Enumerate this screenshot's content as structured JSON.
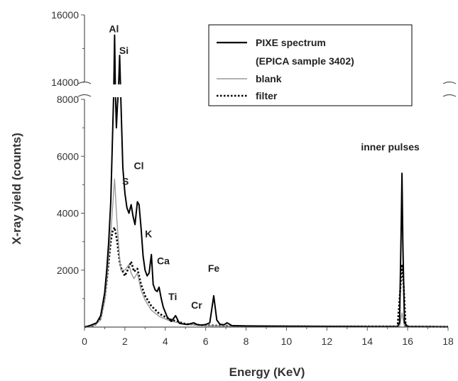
{
  "chart_data": {
    "type": "line",
    "xlabel": "Energy (KeV)",
    "ylabel": "X-ray yield (counts)",
    "xlim": [
      0,
      18
    ],
    "ylim_lower": [
      0,
      8000
    ],
    "ylim_upper": [
      14000,
      16000
    ],
    "axis_break": "between 8000 and 14000",
    "x_ticks": [
      "0",
      "2",
      "4",
      "6",
      "8",
      "10",
      "12",
      "14",
      "16",
      "18"
    ],
    "y_ticks_lower": [
      "2000",
      "4000",
      "6000",
      "8000"
    ],
    "y_ticks_upper": [
      "14000",
      "16000"
    ],
    "legend_position": "top-right",
    "legend": [
      {
        "label": "PIXE spectrum",
        "label2": "(EPICA sample 3402)",
        "style": "solid",
        "color": "#000000"
      },
      {
        "label": "blank",
        "style": "solid",
        "color": "#999999"
      },
      {
        "label": "filter",
        "style": "dotted",
        "color": "#000000"
      }
    ],
    "annotations": [
      {
        "text": "Al",
        "x": 1.49,
        "y": 15400
      },
      {
        "text": "Si",
        "x": 1.74,
        "y": 14800
      },
      {
        "text": "S",
        "x": 2.31,
        "y": 5000
      },
      {
        "text": "Cl",
        "x": 2.62,
        "y": 5450
      },
      {
        "text": "K",
        "x": 3.31,
        "y": 3100
      },
      {
        "text": "Ca",
        "x": 3.69,
        "y": 2150
      },
      {
        "text": "Ti",
        "x": 4.51,
        "y": 850
      },
      {
        "text": "Cr",
        "x": 5.41,
        "y": 650
      },
      {
        "text": "Fe",
        "x": 6.4,
        "y": 1750
      },
      {
        "text": "inner pulses",
        "x": 15.7,
        "y": 6100
      }
    ],
    "series": [
      {
        "name": "PIXE spectrum",
        "color": "#000000",
        "style": "solid",
        "x": [
          0,
          0.3,
          0.6,
          0.8,
          1.0,
          1.1,
          1.2,
          1.3,
          1.4,
          1.45,
          1.49,
          1.53,
          1.58,
          1.63,
          1.68,
          1.74,
          1.8,
          1.9,
          2.0,
          2.1,
          2.2,
          2.31,
          2.4,
          2.5,
          2.62,
          2.7,
          2.8,
          2.9,
          3.0,
          3.1,
          3.2,
          3.31,
          3.4,
          3.5,
          3.6,
          3.69,
          3.8,
          3.9,
          4.1,
          4.3,
          4.51,
          4.7,
          4.9,
          5.1,
          5.41,
          5.6,
          5.8,
          6.0,
          6.2,
          6.4,
          6.55,
          6.7,
          6.9,
          7.06,
          7.3,
          8,
          10,
          12,
          14,
          15.5,
          15.6,
          15.68,
          15.72,
          15.76,
          15.84,
          16.0,
          17,
          18
        ],
        "y": [
          0,
          60,
          150,
          400,
          1200,
          2000,
          3000,
          4400,
          7000,
          10000,
          15400,
          9000,
          7000,
          7800,
          12000,
          14800,
          8000,
          5600,
          4700,
          4200,
          4000,
          4300,
          3900,
          3600,
          4400,
          4300,
          3500,
          2500,
          2000,
          1800,
          1900,
          2550,
          1500,
          1300,
          1250,
          1400,
          1000,
          700,
          350,
          200,
          400,
          130,
          110,
          90,
          150,
          80,
          70,
          90,
          150,
          1100,
          250,
          100,
          80,
          150,
          50,
          40,
          30,
          25,
          20,
          20,
          150,
          3500,
          5400,
          3000,
          150,
          20,
          15,
          10
        ]
      },
      {
        "name": "blank",
        "color": "#999999",
        "style": "solid",
        "x": [
          0,
          0.5,
          0.8,
          1.0,
          1.1,
          1.2,
          1.3,
          1.4,
          1.49,
          1.6,
          1.74,
          1.8,
          2.0,
          2.2,
          2.31,
          2.45,
          2.62,
          2.8,
          3.0,
          3.3,
          3.7,
          4.2,
          5,
          6,
          8,
          12,
          15.6,
          15.72,
          15.84,
          18
        ],
        "y": [
          0,
          60,
          250,
          900,
          1600,
          2500,
          3300,
          4300,
          5200,
          3800,
          2400,
          2000,
          2000,
          2200,
          1900,
          1700,
          1900,
          1300,
          950,
          600,
          380,
          220,
          100,
          50,
          30,
          20,
          20,
          500,
          20,
          10
        ]
      },
      {
        "name": "filter",
        "color": "#000000",
        "style": "dotted",
        "x": [
          0,
          0.5,
          0.8,
          1.0,
          1.1,
          1.2,
          1.3,
          1.4,
          1.49,
          1.6,
          1.74,
          1.8,
          2.0,
          2.2,
          2.31,
          2.45,
          2.62,
          2.8,
          3.0,
          3.3,
          3.7,
          4.2,
          5,
          6,
          8,
          12,
          15.5,
          15.65,
          15.72,
          15.8,
          15.9,
          18
        ],
        "y": [
          0,
          60,
          300,
          1000,
          1600,
          2300,
          3000,
          3400,
          3500,
          3100,
          2300,
          2100,
          1800,
          2100,
          2300,
          1950,
          2050,
          1500,
          1100,
          750,
          470,
          280,
          110,
          60,
          30,
          20,
          20,
          1500,
          2200,
          1500,
          20,
          10
        ]
      }
    ]
  }
}
